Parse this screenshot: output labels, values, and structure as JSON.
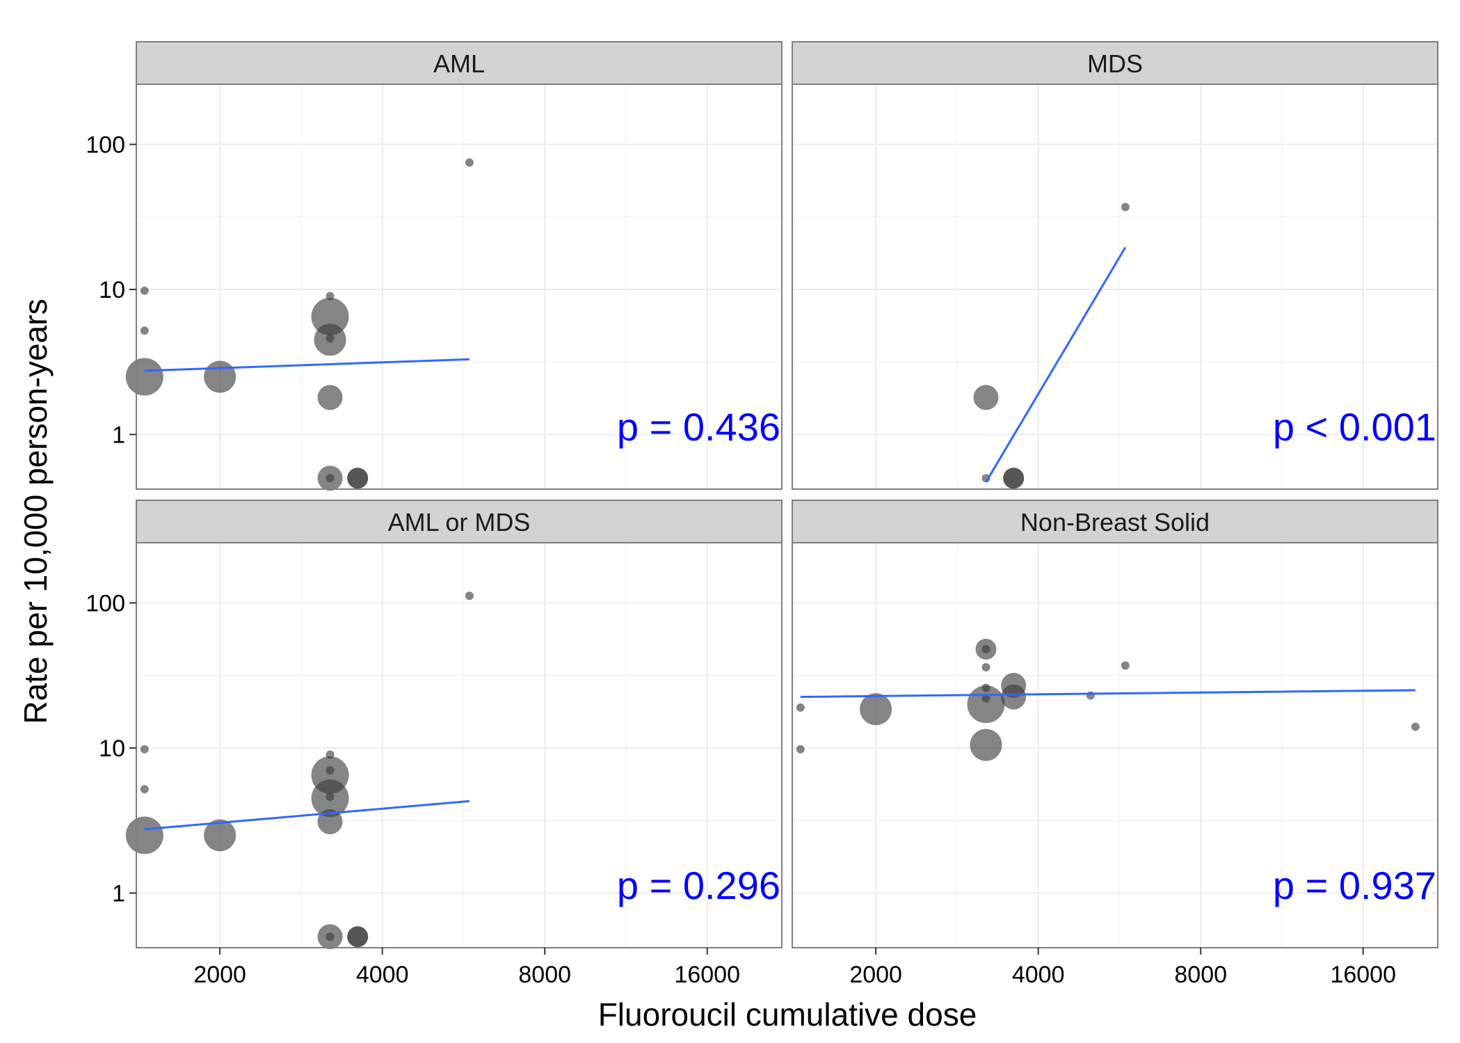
{
  "chart_data": {
    "type": "scatter",
    "ylabel": "Rate per 10,000 person-years",
    "xlabel": "Fluoroucil cumulative dose",
    "x_scale": "log2",
    "y_scale": "log10",
    "xlim": [
      1400,
      22000
    ],
    "ylim": [
      0.42,
      260
    ],
    "x_ticks": [
      2000,
      4000,
      8000,
      16000
    ],
    "x_tick_labels": [
      "2000",
      "4000",
      "8000",
      "16000"
    ],
    "y_ticks": [
      1,
      10,
      100
    ],
    "y_tick_labels": [
      "1",
      "10",
      "100"
    ],
    "grid": true,
    "colors": {
      "point": "#3a3a3a",
      "fit_line": "#3366ff",
      "p_value": "#0000ff",
      "strip": "#d3d3d3",
      "panel_border": "#7f7f7f",
      "grid": "#ebebeb"
    },
    "panels": [
      {
        "title": "AML",
        "p_value_label": "p = 0.436",
        "points": [
          {
            "x": 1450,
            "y": 9.8,
            "size": 1
          },
          {
            "x": 1450,
            "y": 5.2,
            "size": 1
          },
          {
            "x": 1450,
            "y": 2.5,
            "size": 5
          },
          {
            "x": 2000,
            "y": 2.5,
            "size": 4
          },
          {
            "x": 3200,
            "y": 9.0,
            "size": 1
          },
          {
            "x": 3200,
            "y": 6.5,
            "size": 5
          },
          {
            "x": 3200,
            "y": 4.5,
            "size": 4
          },
          {
            "x": 3200,
            "y": 4.6,
            "size": 1
          },
          {
            "x": 3200,
            "y": 1.8,
            "size": 3
          },
          {
            "x": 3200,
            "y": 0.5,
            "size": 3
          },
          {
            "x": 3200,
            "y": 0.5,
            "size": 1
          },
          {
            "x": 3600,
            "y": 0.5,
            "size": 2
          },
          {
            "x": 3600,
            "y": 0.5,
            "size": 2
          },
          {
            "x": 5800,
            "y": 75,
            "size": 1
          }
        ],
        "fit": {
          "x": [
            1450,
            5800
          ],
          "y": [
            2.75,
            3.3
          ]
        }
      },
      {
        "title": "MDS",
        "p_value_label": "p < 0.001",
        "points": [
          {
            "x": 3200,
            "y": 1.8,
            "size": 3
          },
          {
            "x": 3200,
            "y": 0.5,
            "size": 1
          },
          {
            "x": 3600,
            "y": 0.5,
            "size": 2
          },
          {
            "x": 3600,
            "y": 0.5,
            "size": 2
          },
          {
            "x": 5800,
            "y": 37,
            "size": 1
          }
        ],
        "fit": {
          "x": [
            3200,
            5800
          ],
          "y": [
            0.47,
            19.5
          ]
        }
      },
      {
        "title": "AML or MDS",
        "p_value_label": "p = 0.296",
        "points": [
          {
            "x": 1450,
            "y": 9.8,
            "size": 1
          },
          {
            "x": 1450,
            "y": 5.2,
            "size": 1
          },
          {
            "x": 1450,
            "y": 2.5,
            "size": 5
          },
          {
            "x": 2000,
            "y": 2.5,
            "size": 4
          },
          {
            "x": 3200,
            "y": 9.0,
            "size": 1
          },
          {
            "x": 3200,
            "y": 7.0,
            "size": 1
          },
          {
            "x": 3200,
            "y": 6.5,
            "size": 5
          },
          {
            "x": 3200,
            "y": 4.5,
            "size": 5
          },
          {
            "x": 3200,
            "y": 4.6,
            "size": 1
          },
          {
            "x": 3200,
            "y": 3.1,
            "size": 3
          },
          {
            "x": 3200,
            "y": 0.5,
            "size": 3
          },
          {
            "x": 3200,
            "y": 0.5,
            "size": 1
          },
          {
            "x": 3600,
            "y": 0.5,
            "size": 2
          },
          {
            "x": 3600,
            "y": 0.5,
            "size": 2
          },
          {
            "x": 5800,
            "y": 112,
            "size": 1
          }
        ],
        "fit": {
          "x": [
            1450,
            5800
          ],
          "y": [
            2.75,
            4.3
          ]
        }
      },
      {
        "title": "Non-Breast Solid",
        "p_value_label": "p = 0.937",
        "points": [
          {
            "x": 1450,
            "y": 19,
            "size": 1
          },
          {
            "x": 1450,
            "y": 9.8,
            "size": 1
          },
          {
            "x": 2000,
            "y": 18.5,
            "size": 4
          },
          {
            "x": 3200,
            "y": 48,
            "size": 2
          },
          {
            "x": 3200,
            "y": 48,
            "size": 1
          },
          {
            "x": 3200,
            "y": 36,
            "size": 1
          },
          {
            "x": 3200,
            "y": 26,
            "size": 1
          },
          {
            "x": 3200,
            "y": 22,
            "size": 1
          },
          {
            "x": 3200,
            "y": 20,
            "size": 5
          },
          {
            "x": 3200,
            "y": 10.5,
            "size": 4
          },
          {
            "x": 3600,
            "y": 27,
            "size": 3
          },
          {
            "x": 3600,
            "y": 22.5,
            "size": 3
          },
          {
            "x": 5000,
            "y": 23,
            "size": 1
          },
          {
            "x": 5800,
            "y": 37,
            "size": 1
          },
          {
            "x": 20000,
            "y": 14,
            "size": 1
          }
        ],
        "fit": {
          "x": [
            1450,
            20000
          ],
          "y": [
            22.5,
            25
          ]
        }
      }
    ]
  }
}
